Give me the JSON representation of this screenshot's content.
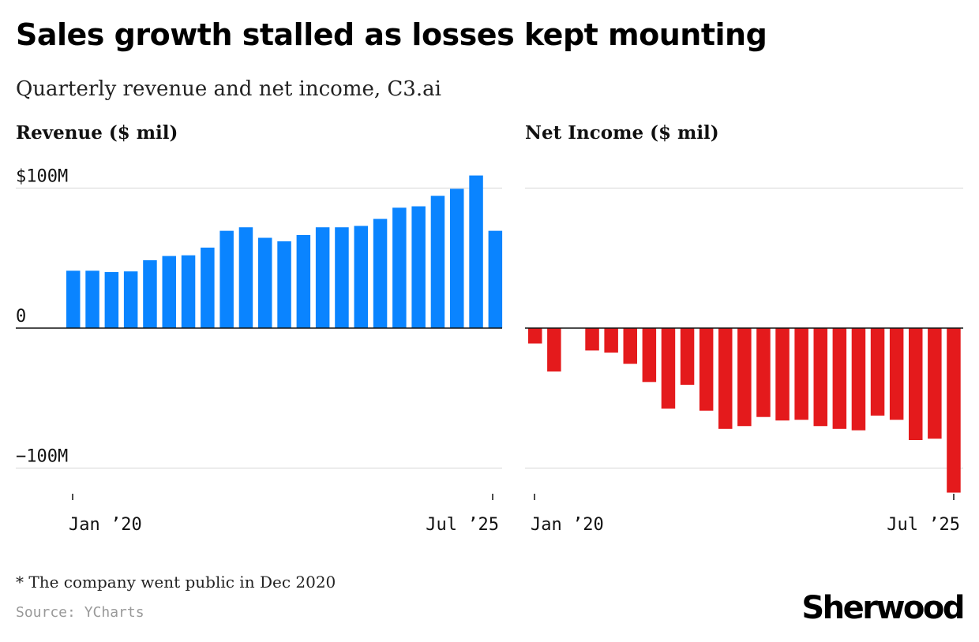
{
  "title": "Sales growth stalled as losses kept mounting",
  "subtitle": "Quarterly revenue and net income, C3.ai",
  "footnote": "* The company went public in Dec 2020",
  "source": "Source: YCharts",
  "logo": "Sherwood",
  "colors": {
    "revenue": "#0a84ff",
    "net_income": "#e41a1c",
    "grid": "#dddddd",
    "axis": "#111111"
  },
  "chart_data": [
    {
      "type": "bar",
      "title": "Revenue ($ mil)",
      "y_tick_labels": [
        "$100M",
        "0",
        "−100M"
      ],
      "x_tick_labels": [
        "Jan ’20",
        "Jul ’25"
      ],
      "ylim": [
        -120,
        110
      ],
      "gridlines": [
        100,
        0,
        -100
      ],
      "grid": true,
      "legend": "none",
      "series": [
        {
          "values": [
            41,
            41,
            40,
            40.5,
            48.5,
            51.5,
            52,
            57.5,
            69.5,
            72,
            64.5,
            62,
            66.5,
            72,
            72,
            73,
            78,
            86,
            87,
            94.5,
            99.5,
            109,
            69.5
          ]
        }
      ]
    },
    {
      "type": "bar",
      "title": "Net Income ($ mil)",
      "x_tick_labels": [
        "Jan ’20",
        "Jul ’25"
      ],
      "ylim": [
        -120,
        110
      ],
      "gridlines": [
        100,
        0,
        -100
      ],
      "grid": true,
      "legend": "none",
      "series": [
        {
          "values": [
            -11,
            -31,
            null,
            -16,
            -17.5,
            -25.5,
            -38.5,
            -57.5,
            -40.5,
            -59,
            -72,
            -70,
            -63.5,
            -66,
            -65.5,
            -70,
            -72,
            -73,
            -62.5,
            -65.5,
            -80,
            -79,
            -117.5
          ]
        }
      ]
    }
  ]
}
